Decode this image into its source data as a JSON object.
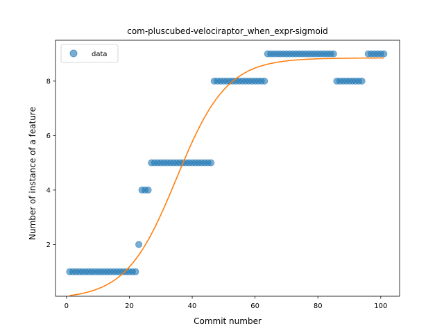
{
  "chart_data": {
    "type": "scatter",
    "title": "com-pluscubed-velociraptor_when_expr-sigmoid",
    "xlabel": "Commit number",
    "ylabel": "Number of instance of a feature",
    "xlim": [
      -3.5,
      106
    ],
    "ylim": [
      0.1,
      9.5
    ],
    "xticks": [
      0,
      20,
      40,
      60,
      80,
      100
    ],
    "yticks": [
      2,
      4,
      6,
      8
    ],
    "grid": false,
    "legend": {
      "position": "top-left",
      "entries": [
        "data"
      ]
    },
    "series": [
      {
        "name": "data",
        "kind": "scatter",
        "color": "#1f77b4",
        "x": [
          1,
          2,
          3,
          4,
          5,
          6,
          7,
          8,
          9,
          10,
          11,
          12,
          13,
          14,
          15,
          16,
          17,
          18,
          19,
          20,
          21,
          22,
          23,
          24,
          25,
          26,
          27,
          28,
          29,
          30,
          31,
          32,
          33,
          34,
          35,
          36,
          37,
          38,
          39,
          40,
          41,
          42,
          43,
          44,
          45,
          46,
          47,
          48,
          49,
          50,
          51,
          52,
          53,
          54,
          55,
          56,
          57,
          58,
          59,
          60,
          61,
          62,
          63,
          64,
          65,
          66,
          67,
          68,
          69,
          70,
          71,
          72,
          73,
          74,
          75,
          76,
          77,
          78,
          79,
          80,
          81,
          82,
          83,
          84,
          85,
          86,
          87,
          88,
          89,
          90,
          91,
          92,
          93,
          94,
          96,
          97,
          98,
          99,
          100,
          101
        ],
        "y": [
          1,
          1,
          1,
          1,
          1,
          1,
          1,
          1,
          1,
          1,
          1,
          1,
          1,
          1,
          1,
          1,
          1,
          1,
          1,
          1,
          1,
          1,
          2,
          4,
          4,
          4,
          5,
          5,
          5,
          5,
          5,
          5,
          5,
          5,
          5,
          5,
          5,
          5,
          5,
          5,
          5,
          5,
          5,
          5,
          5,
          5,
          8,
          8,
          8,
          8,
          8,
          8,
          8,
          8,
          8,
          8,
          8,
          8,
          8,
          8,
          8,
          8,
          8,
          9,
          9,
          9,
          9,
          9,
          9,
          9,
          9,
          9,
          9,
          9,
          9,
          9,
          9,
          9,
          9,
          9,
          9,
          9,
          9,
          9,
          9,
          8,
          8,
          8,
          8,
          8,
          8,
          8,
          8,
          8,
          9,
          9,
          9,
          9,
          9,
          9
        ]
      },
      {
        "name": "",
        "kind": "line",
        "color": "#ff7f0e",
        "fit": {
          "L": 8.85,
          "k": 0.125,
          "x0": 35.0,
          "x_start": 1,
          "x_end": 101
        }
      }
    ]
  }
}
